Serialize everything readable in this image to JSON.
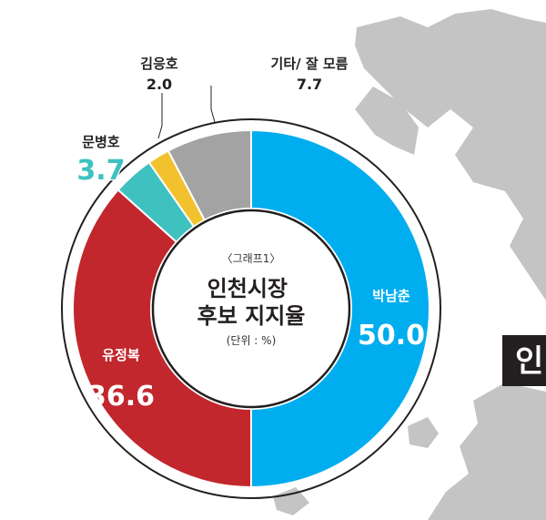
{
  "chart_data": {
    "type": "pie",
    "variant": "donut",
    "caption": "〈그래프1〉",
    "title": "인천시장\n후보 지지율",
    "subtitle": "(단위 : %)",
    "slices": [
      {
        "name": "박남춘",
        "value": 50.0,
        "color": "#00adef"
      },
      {
        "name": "유정복",
        "value": 36.6,
        "color": "#c1272d"
      },
      {
        "name": "문병호",
        "value": 3.7,
        "color": "#3fc1c0"
      },
      {
        "name": "김응호",
        "value": 2.0,
        "color": "#f2c12e"
      },
      {
        "name": "기타/ 잘 모름",
        "value": 7.7,
        "color": "#a3a3a3"
      }
    ]
  },
  "background": {
    "map_color": "#c4c4c4",
    "banner_text": "인"
  }
}
